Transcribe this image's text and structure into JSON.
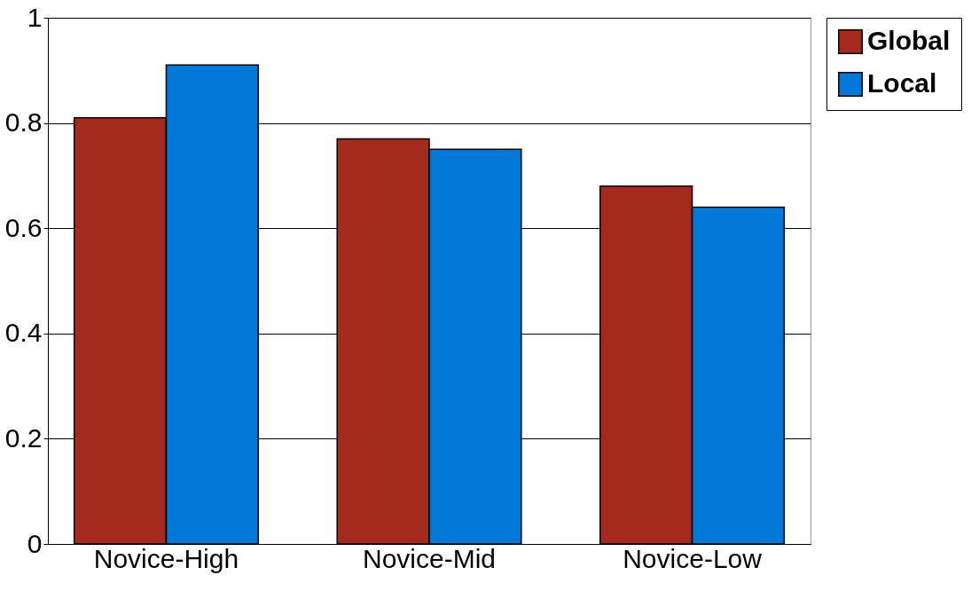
{
  "chart_data": {
    "type": "bar",
    "categories": [
      "Novice-High",
      "Novice-Mid",
      "Novice-Low"
    ],
    "series": [
      {
        "name": "Global",
        "color": "#a52a1e",
        "values": [
          0.81,
          0.77,
          0.68
        ]
      },
      {
        "name": "Local",
        "color": "#0078d7",
        "values": [
          0.91,
          0.75,
          0.64
        ]
      }
    ],
    "ylim": [
      0,
      1
    ],
    "yticks": [
      0,
      0.2,
      0.4,
      0.6,
      0.8,
      1
    ],
    "grid": "y",
    "legend": "top right"
  }
}
